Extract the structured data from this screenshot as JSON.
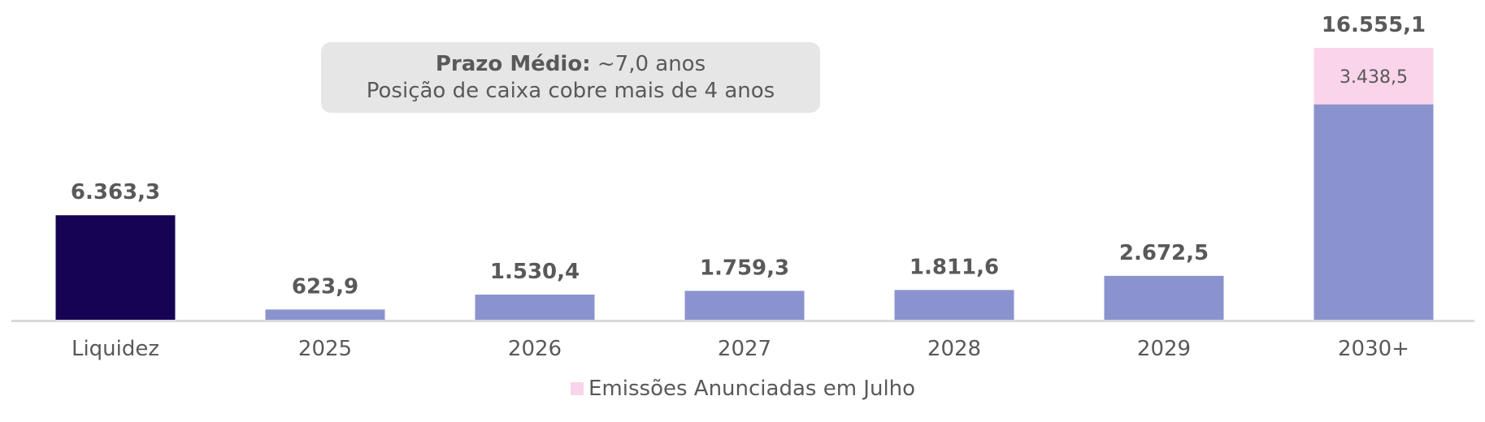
{
  "chart_data": {
    "type": "bar",
    "stacked": true,
    "categories": [
      "Liquidez",
      "2025",
      "2026",
      "2027",
      "2028",
      "2029",
      "2030+"
    ],
    "series": [
      {
        "values": [
          6363.3,
          623.9,
          1530.4,
          1759.3,
          1811.6,
          2672.5,
          13116.6
        ]
      },
      {
        "name": "Emissões Anunciadas em Julho",
        "values": [
          0,
          0,
          0,
          0,
          0,
          0,
          3438.5
        ]
      }
    ],
    "total_labels": [
      "6.363,3",
      "623,9",
      "1.530,4",
      "1.759,3",
      "1.811,6",
      "2.672,5",
      "16.555,1"
    ],
    "segment_labels": [
      {
        "category": "2030+",
        "series": "Emissões Anunciadas em Julho",
        "label": "3.438,5"
      }
    ],
    "colors": {
      "liquidez": "#170353",
      "maturities": "#8a93cd",
      "emissoes": "#fad4ea",
      "axis": "#d9d9d9",
      "text": "#595959"
    },
    "ylim": [
      0,
      17000
    ],
    "grid": false,
    "legend_position": "bottom-center"
  },
  "callout": {
    "title_bold": "Prazo Médio:",
    "title_value": " ~7,0 anos",
    "line2": "Posição de caixa cobre mais de 4 anos"
  },
  "legend": {
    "label": "Emissões Anunciadas em Julho"
  }
}
